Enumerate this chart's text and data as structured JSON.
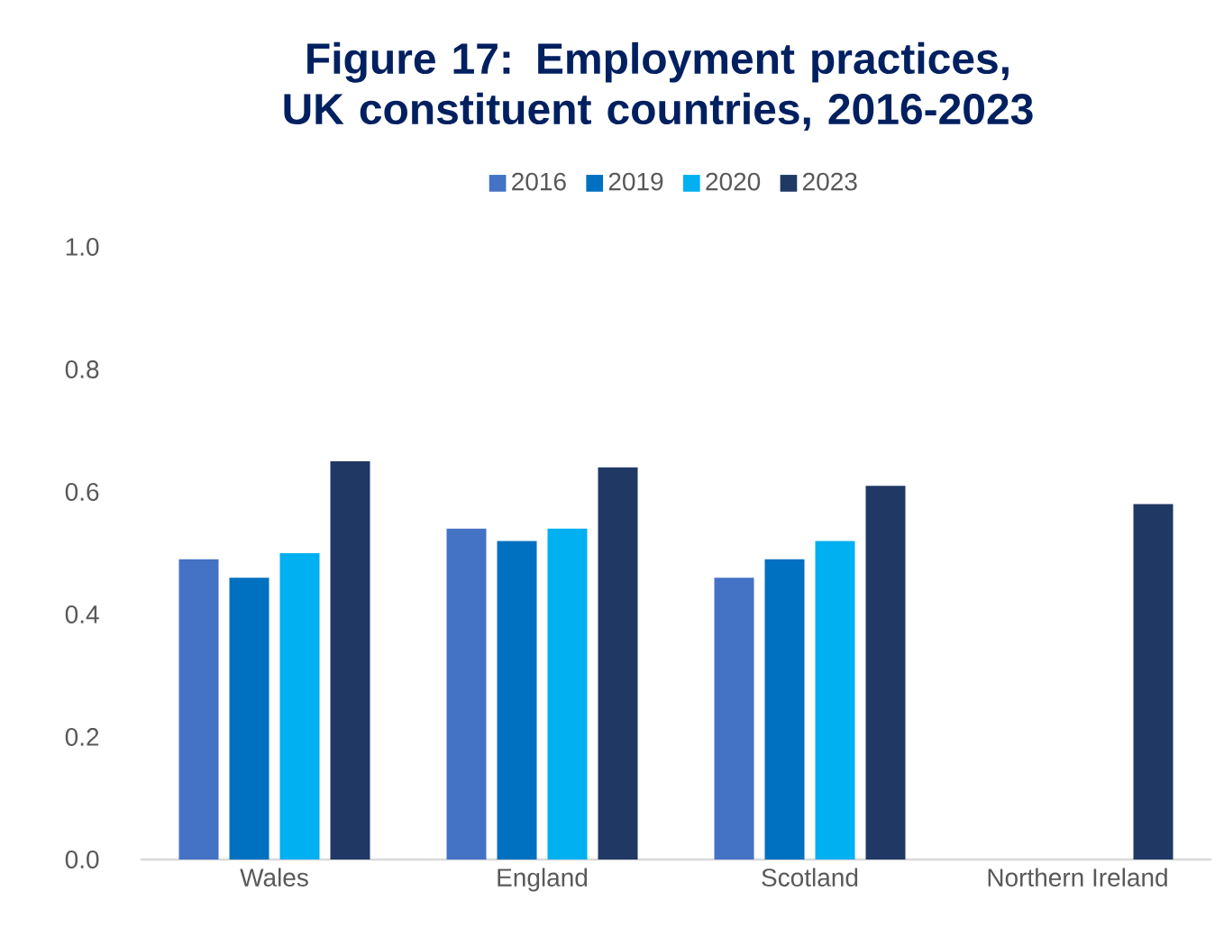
{
  "chart_data": {
    "type": "bar",
    "title": "Figure 17: Employment practices, UK constituent countries, 2016-2023",
    "categories": [
      "Wales",
      "England",
      "Scotland",
      "Northern Ireland"
    ],
    "series": [
      {
        "name": "2016",
        "color": "#4472c4",
        "values": [
          0.49,
          0.54,
          0.46,
          null
        ]
      },
      {
        "name": "2019",
        "color": "#0070c0",
        "values": [
          0.46,
          0.52,
          0.49,
          null
        ]
      },
      {
        "name": "2020",
        "color": "#00b0f0",
        "values": [
          0.5,
          0.54,
          0.52,
          null
        ]
      },
      {
        "name": "2023",
        "color": "#203864",
        "values": [
          0.65,
          0.64,
          0.61,
          0.58
        ]
      }
    ],
    "ylim": [
      0,
      1.0
    ],
    "yticks": [
      {
        "value": 0,
        "label": "0.0"
      },
      {
        "value": 0.2,
        "label": "0.2"
      },
      {
        "value": 0.4,
        "label": "0.4"
      },
      {
        "value": 0.6,
        "label": "0.6"
      },
      {
        "value": 0.8,
        "label": "0.8"
      },
      {
        "value": 1.0,
        "label": "1.0"
      }
    ],
    "legend": "top"
  }
}
